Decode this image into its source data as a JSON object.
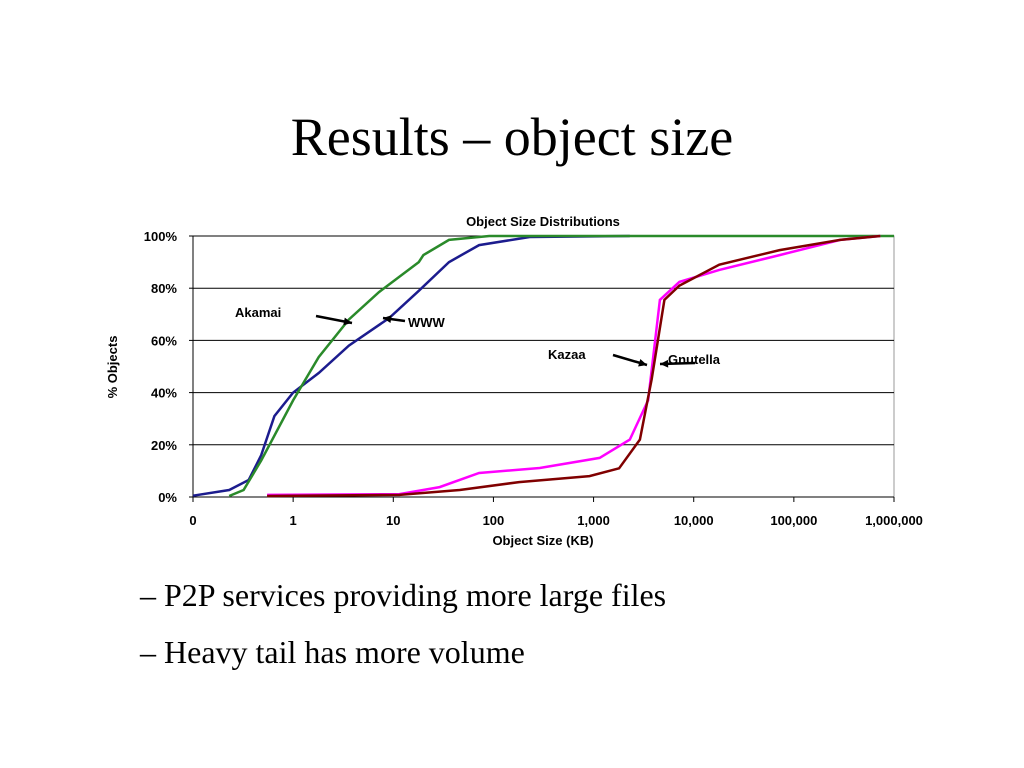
{
  "slide": {
    "title": "Results – object size",
    "bullets": [
      "– P2P services providing more large files",
      "– Heavy tail has more volume"
    ]
  },
  "chart_data": {
    "type": "line",
    "title": "Object Size Distributions",
    "x_label": "Object Size (KB)",
    "y_label": "% Objects",
    "xscale": "log",
    "xlim": [
      0.1,
      1000000
    ],
    "xticks": [
      {
        "value": 0.1,
        "label": "0"
      },
      1,
      10,
      100,
      {
        "value": 1000,
        "label": "1,000"
      },
      {
        "value": 10000,
        "label": "10,000"
      },
      {
        "value": 100000,
        "label": "100,000"
      },
      {
        "value": 1000000,
        "label": "1,000,000"
      }
    ],
    "ylim": [
      0,
      100
    ],
    "yticks": [
      {
        "value": 0,
        "label": "0%"
      },
      {
        "value": 20,
        "label": "20%"
      },
      {
        "value": 40,
        "label": "40%"
      },
      {
        "value": 60,
        "label": "60%"
      },
      {
        "value": 80,
        "label": "80%"
      },
      {
        "value": 100,
        "label": "100%"
      }
    ],
    "grid": true,
    "series": [
      {
        "name": "WWW",
        "color": "#1c1c8e",
        "x": [
          0.1,
          0.23,
          0.36,
          0.48,
          0.65,
          1,
          1.8,
          3.6,
          9.1,
          18,
          36,
          72,
          230,
          2300
        ],
        "values": [
          0.5,
          2.7,
          6.5,
          16,
          31,
          40,
          47.5,
          58,
          68.6,
          79,
          90,
          96.5,
          99.6,
          100
        ]
      },
      {
        "name": "Akamai",
        "color": "#2a8a2a",
        "x": [
          0.23,
          0.32,
          0.48,
          1,
          1.8,
          3.6,
          7.2,
          18,
          20,
          36,
          91,
          1000000
        ],
        "values": [
          0.4,
          2.7,
          14,
          37,
          53.6,
          68,
          78.5,
          90,
          92.7,
          98.5,
          100,
          100
        ]
      },
      {
        "name": "Kazaa",
        "color": "#ff00ff",
        "x": [
          0.55,
          11.5,
          29,
          72,
          290,
          1150,
          2300,
          3500,
          4600,
          7200,
          18000,
          72000,
          290000,
          730000
        ],
        "values": [
          0.8,
          1.1,
          3.8,
          9.2,
          11.1,
          15,
          22,
          37,
          75.5,
          82.4,
          87,
          92.7,
          98.5,
          100
        ]
      },
      {
        "name": "Gnutella",
        "color": "#800000",
        "x": [
          0.55,
          11.5,
          46,
          180,
          910,
          1800,
          2900,
          3800,
          5100,
          7200,
          18000,
          72000,
          290000,
          730000
        ],
        "values": [
          0.4,
          0.8,
          2.7,
          5.7,
          8,
          11,
          22,
          45,
          75.5,
          81,
          89,
          94.6,
          98.5,
          100
        ]
      }
    ]
  }
}
